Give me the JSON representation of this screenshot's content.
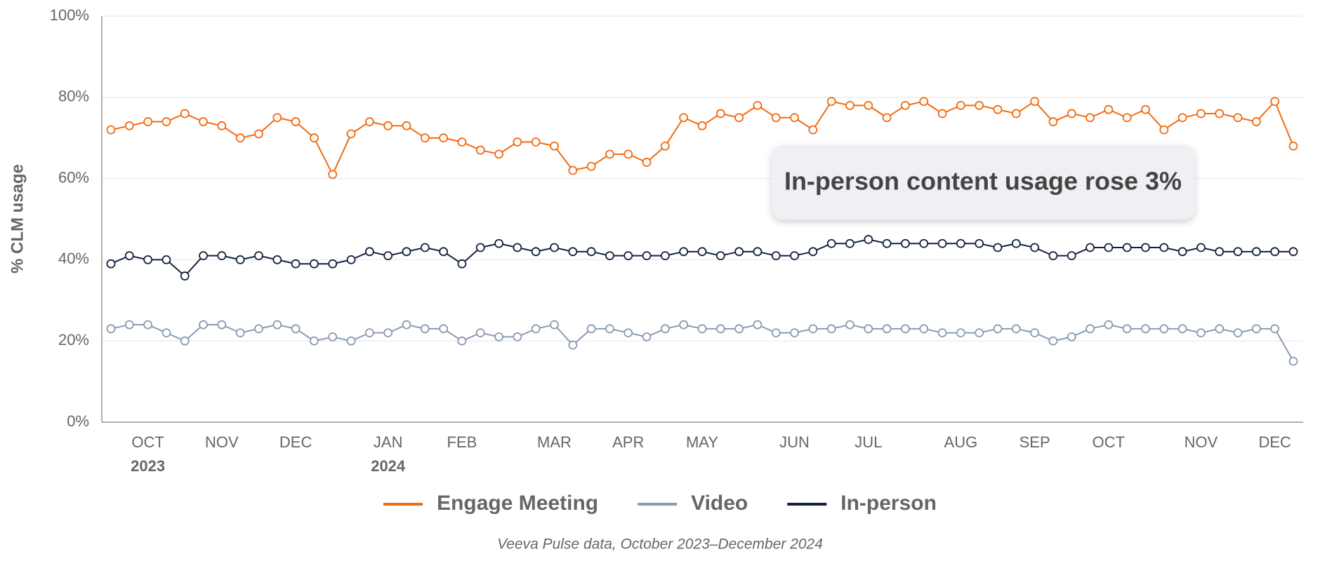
{
  "chart_data": {
    "type": "line",
    "y_label": "% CLM usage",
    "source": "Veeva Pulse data, October 2023–December 2024",
    "annotation": "In-person content usage rose 3%",
    "categories": [
      null,
      null,
      "OCT",
      null,
      null,
      null,
      "NOV",
      null,
      null,
      null,
      "DEC",
      null,
      null,
      null,
      null,
      "JAN",
      null,
      null,
      null,
      "FEB",
      null,
      null,
      null,
      null,
      "MAR",
      null,
      null,
      null,
      "APR",
      null,
      null,
      null,
      "MAY",
      null,
      null,
      null,
      null,
      "JUN",
      null,
      null,
      null,
      "JUL",
      null,
      null,
      null,
      null,
      "AUG",
      null,
      null,
      null,
      "SEP",
      null,
      null,
      null,
      "OCT",
      null,
      null,
      null,
      null,
      "NOV",
      null,
      null,
      null,
      "DEC",
      null
    ],
    "category_years": [
      null,
      null,
      "2023",
      null,
      null,
      null,
      null,
      null,
      null,
      null,
      null,
      null,
      null,
      null,
      null,
      "2024",
      null,
      null,
      null,
      null,
      null,
      null,
      null,
      null,
      null,
      null,
      null,
      null,
      null,
      null,
      null,
      null,
      null,
      null,
      null,
      null,
      null,
      null,
      null,
      null,
      null,
      null,
      null,
      null,
      null,
      null,
      null,
      null,
      null,
      null,
      null,
      null,
      null,
      null,
      null,
      null,
      null,
      null,
      null,
      null,
      null,
      null,
      null,
      null,
      null
    ],
    "series": [
      {
        "name": "Engage Meeting",
        "color": "#f26b0f",
        "values": [
          72,
          73,
          74,
          74,
          76,
          74,
          73,
          70,
          71,
          75,
          74,
          70,
          61,
          71,
          74,
          73,
          73,
          70,
          70,
          69,
          67,
          66,
          69,
          69,
          68,
          62,
          63,
          66,
          66,
          64,
          68,
          75,
          73,
          76,
          75,
          78,
          75,
          75,
          72,
          79,
          78,
          78,
          75,
          78,
          79,
          76,
          78,
          78,
          77,
          76,
          79,
          74,
          76,
          75,
          77,
          75,
          77,
          72,
          75,
          76,
          76,
          75,
          74,
          79,
          68
        ]
      },
      {
        "name": "Video",
        "color": "#8a9bb0",
        "values": [
          23,
          24,
          24,
          22,
          20,
          24,
          24,
          22,
          23,
          24,
          23,
          20,
          21,
          20,
          22,
          22,
          24,
          23,
          23,
          20,
          22,
          21,
          21,
          23,
          24,
          19,
          23,
          23,
          22,
          21,
          23,
          24,
          23,
          23,
          23,
          24,
          22,
          22,
          23,
          23,
          24,
          23,
          23,
          23,
          23,
          22,
          22,
          22,
          23,
          23,
          22,
          20,
          21,
          23,
          24,
          23,
          23,
          23,
          23,
          22,
          23,
          22,
          23,
          23,
          15
        ]
      },
      {
        "name": "In-person",
        "color": "#14213d",
        "values": [
          39,
          41,
          40,
          40,
          36,
          41,
          41,
          40,
          41,
          40,
          39,
          39,
          39,
          40,
          42,
          41,
          42,
          43,
          42,
          39,
          43,
          44,
          43,
          42,
          43,
          42,
          42,
          41,
          41,
          41,
          41,
          42,
          42,
          41,
          42,
          42,
          41,
          41,
          42,
          44,
          44,
          45,
          44,
          44,
          44,
          44,
          44,
          44,
          43,
          44,
          43,
          41,
          41,
          43,
          43,
          43,
          43,
          43,
          42,
          43,
          42,
          42,
          42,
          42,
          42
        ]
      }
    ],
    "ylim": [
      0,
      100
    ],
    "yticks": [
      {
        "value": 0,
        "label": "0%"
      },
      {
        "value": 20,
        "label": "20%"
      },
      {
        "value": 40,
        "label": "40%"
      },
      {
        "value": 60,
        "label": "60%"
      },
      {
        "value": 80,
        "label": "80%"
      },
      {
        "value": 100,
        "label": "100%"
      }
    ],
    "grid": true
  }
}
